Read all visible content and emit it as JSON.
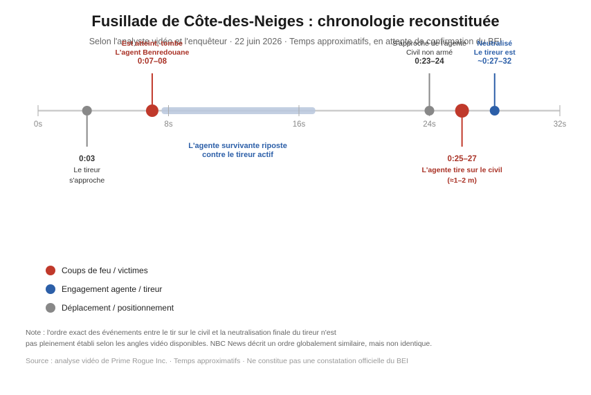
{
  "header": {
    "title": "Fusillade de Côte-des-Neiges : chronologie reconstituée",
    "subtitle": "Selon l'analyste vidéo et l'enquêteur · 22 juin 2026 · Temps approximatifs, en attente de confirmation du BEI"
  },
  "colors": {
    "fire": "#c0392b",
    "fire_text": "#a93226",
    "agent": "#2c5fa8",
    "move": "#888888",
    "axis": "#cccccc",
    "band": "#b8c7dd"
  },
  "chart_data": {
    "type": "timeline",
    "x_ticks": [
      0,
      8,
      16,
      24,
      32
    ],
    "x_tick_labels": [
      "0s",
      "8s",
      "16s",
      "24s",
      "32s"
    ],
    "xlim": [
      0,
      32
    ],
    "band": {
      "start": 8,
      "end": 17,
      "label_lines": [
        "L'agente survivante riposte",
        "contre le tireur actif"
      ]
    },
    "events": [
      {
        "t": 3,
        "category": "move",
        "side": "below",
        "size": "small",
        "time_label": "0:03",
        "lines": [
          "Le tireur",
          "s'approche"
        ]
      },
      {
        "t": 7,
        "category": "fire",
        "side": "above",
        "size": "medium",
        "time_label": "0:07–08",
        "lines": [
          "Est atteint, tombe",
          "L'agent Benredouane"
        ]
      },
      {
        "t": 24,
        "category": "move",
        "side": "above",
        "size": "small",
        "time_label": "0:23–24",
        "lines": [
          "S'approche de l'agente",
          "Civil non armé"
        ]
      },
      {
        "t": 26,
        "category": "fire",
        "side": "below",
        "size": "large",
        "time_label": "0:25–27",
        "lines": [
          "L'agente tire sur le civil",
          "(≈1–2 m)"
        ]
      },
      {
        "t": 28,
        "category": "agent",
        "side": "above",
        "size": "small",
        "time_label": "~0:27–32",
        "lines": [
          "Neutralisé",
          "Le tireur est"
        ]
      }
    ]
  },
  "legend": {
    "items": [
      {
        "label": "Coups de feu / victimes",
        "color": "#c0392b"
      },
      {
        "label": "Engagement agente / tireur",
        "color": "#2c5fa8"
      },
      {
        "label": "Déplacement / positionnement",
        "color": "#888888"
      }
    ]
  },
  "note": {
    "line1": "Note : l'ordre exact des événements entre le tir sur le civil et la neutralisation finale du tireur n'est",
    "line2": "pas pleinement établi selon les angles vidéo disponibles. NBC News décrit un ordre globalement similaire, mais non identique."
  },
  "source": "Source : analyse vidéo de Prime Rogue Inc. · Temps approximatifs · Ne constitue pas une constatation officielle du BEI"
}
